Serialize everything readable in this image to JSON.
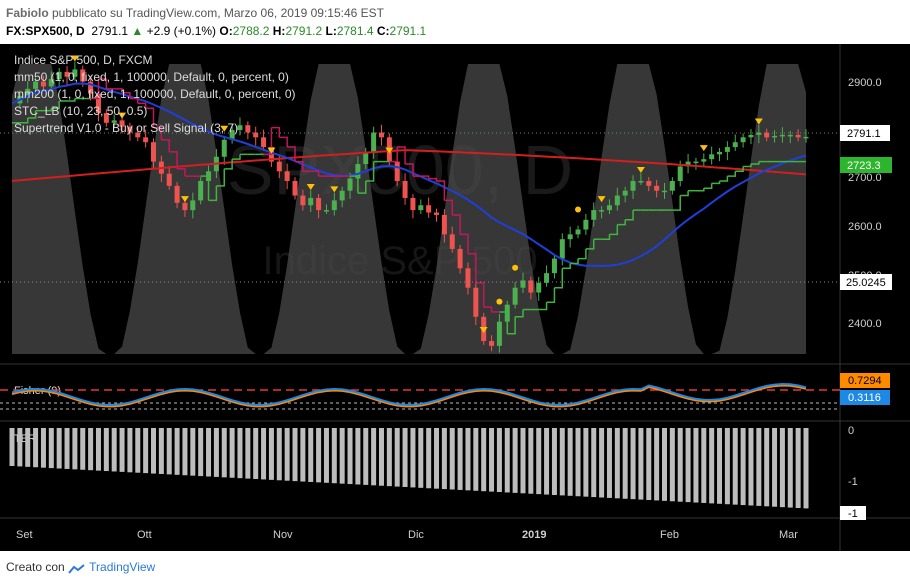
{
  "header": {
    "author": "Fabiolo",
    "line1_rest": " pubblicato su TradingView.com, Marzo 06, 2019 09:15:46 EST",
    "symbol": "FX:SPX500, D",
    "last": "2791.1",
    "change": "+2.9 (+0.1%)",
    "o_label": "O:",
    "o_value": "2788.2",
    "h_label": "H:",
    "h_value": "2791.2",
    "l_label": "L:",
    "l_value": "2781.4",
    "c_label": "C:",
    "c_value": "2791.1"
  },
  "legend": {
    "title": "Indice S&P 500, D, FXCM",
    "mm50": "mm50 (1, 0, fixed, 1, 100000, Default, 0, percent, 0)",
    "mm200": "mm200 (1, 0, fixed, 1, 100000, Default, 0, percent, 0)",
    "stc": "STC_LB (10, 23, 50, 0.5)",
    "supertrend": "Supertrend V1.0 - Buy or Sell Signal (3, 7)"
  },
  "watermark": {
    "symbol": "SPX500, D",
    "name": "Indice S&P 500"
  },
  "price_axis": {
    "ticks": [
      "2900.0",
      "2800.0",
      "2700.0",
      "2600.0",
      "2500.0",
      "2400.0"
    ],
    "last_price_tag": "2791.1",
    "supertrend_tag": "2723.3",
    "stc_tag": "25.0245"
  },
  "fisher": {
    "label": "Fisher (9)",
    "tag_high": "0.7294",
    "tag_low": "0.3116"
  },
  "lower": {
    "label": "TER",
    "ticks": [
      "0",
      "-1",
      "-1"
    ]
  },
  "time_axis": {
    "labels": [
      "Set",
      "Ott",
      "Nov",
      "Dic",
      "2019",
      "Feb",
      "Mar"
    ]
  },
  "footer": {
    "text": "Creato con",
    "brand": "TradingView"
  },
  "colors": {
    "up": "#4caf50",
    "down": "#ef5350",
    "mm50": "#1f3fd8",
    "mm200": "#d21f1f",
    "supertrend_up": "#3fb53f",
    "supertrend_down": "#c2185b",
    "fisher": "#1e88e5",
    "trigger": "#ff8a00",
    "signal": "#ffc107",
    "stc": "#8a8a8a"
  },
  "chart_data": {
    "type": "candlestick",
    "title": "Indice S&P 500, D, FXCM",
    "ylim": [
      2330,
      2950
    ],
    "series": [
      {
        "name": "close",
        "values": [
          2860,
          2875,
          2890,
          2905,
          2895,
          2910,
          2925,
          2915,
          2930,
          2905,
          2880,
          2840,
          2820,
          2825,
          2812,
          2800,
          2790,
          2780,
          2740,
          2715,
          2690,
          2655,
          2640,
          2660,
          2700,
          2720,
          2750,
          2785,
          2805,
          2815,
          2800,
          2790,
          2770,
          2740,
          2720,
          2700,
          2670,
          2650,
          2665,
          2640,
          2640,
          2660,
          2680,
          2705,
          2735,
          2760,
          2800,
          2790,
          2740,
          2700,
          2665,
          2640,
          2650,
          2635,
          2630,
          2590,
          2560,
          2520,
          2480,
          2420,
          2370,
          2360,
          2410,
          2445,
          2480,
          2495,
          2470,
          2490,
          2510,
          2540,
          2580,
          2590,
          2600,
          2620,
          2640,
          2640,
          2650,
          2670,
          2680,
          2700,
          2700,
          2690,
          2680,
          2680,
          2700,
          2730,
          2740,
          2740,
          2745,
          2755,
          2760,
          2770,
          2780,
          2790,
          2795,
          2800,
          2790,
          2793,
          2795,
          2795,
          2790,
          2791
        ]
      }
    ]
  }
}
